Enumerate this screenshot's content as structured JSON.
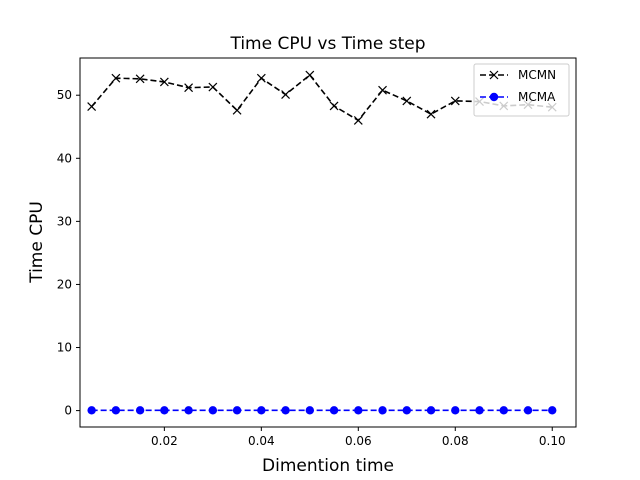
{
  "chart_data": {
    "type": "line",
    "title": "Time CPU vs Time step",
    "xlabel": "Dimention time",
    "ylabel": "Time CPU",
    "xlim": [
      0.0026,
      0.1049
    ],
    "ylim": [
      -2.6,
      55.9
    ],
    "xticks": [
      0.02,
      0.04,
      0.06,
      0.08,
      0.1
    ],
    "xtick_labels": [
      "0.02",
      "0.04",
      "0.06",
      "0.08",
      "0.10"
    ],
    "yticks": [
      0,
      10,
      20,
      30,
      40,
      50
    ],
    "ytick_labels": [
      "0",
      "10",
      "20",
      "30",
      "40",
      "50"
    ],
    "grid": false,
    "legend_position": "top-right",
    "x": [
      0.005,
      0.01,
      0.015,
      0.02,
      0.025,
      0.03,
      0.035,
      0.04,
      0.045,
      0.05,
      0.055,
      0.06,
      0.065,
      0.07,
      0.075,
      0.08,
      0.085,
      0.09,
      0.095,
      0.1
    ],
    "series": [
      {
        "name": "MCMN",
        "color": "#000000",
        "marker": "x",
        "linestyle": "dashed",
        "values": [
          48.2,
          52.7,
          52.6,
          52.1,
          51.2,
          51.3,
          47.6,
          52.7,
          50.1,
          53.2,
          48.3,
          46.0,
          50.8,
          49.1,
          47.0,
          49.1,
          49.0,
          48.3,
          48.5,
          48.1
        ]
      },
      {
        "name": "MCMA",
        "color": "#0000ff",
        "marker": "o",
        "linestyle": "dashed",
        "values": [
          0.05,
          0.05,
          0.05,
          0.05,
          0.05,
          0.05,
          0.05,
          0.05,
          0.05,
          0.05,
          0.05,
          0.05,
          0.05,
          0.05,
          0.05,
          0.05,
          0.05,
          0.05,
          0.05,
          0.05
        ]
      }
    ]
  }
}
